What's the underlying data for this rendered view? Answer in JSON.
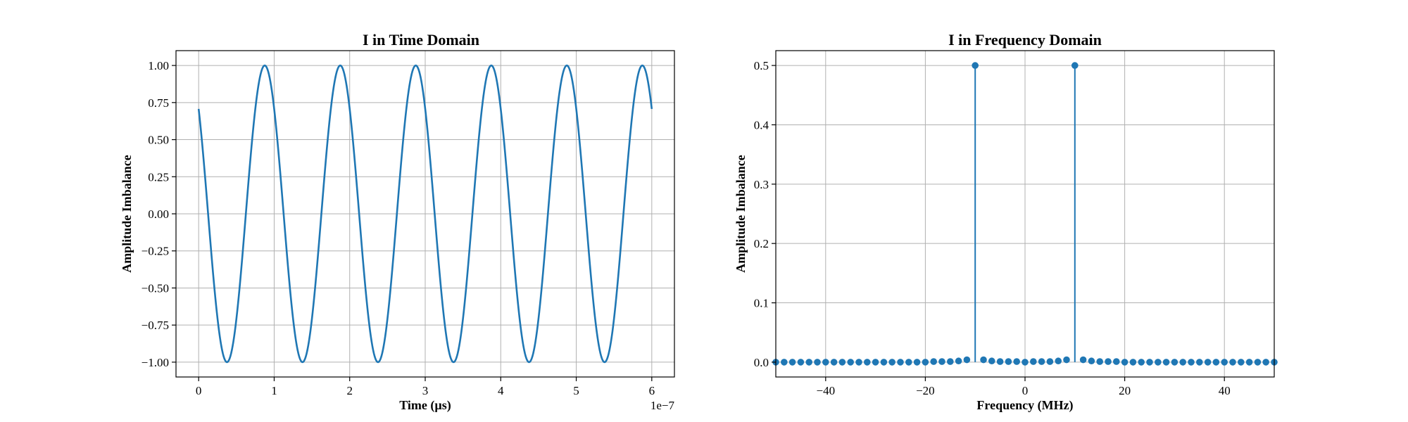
{
  "chart_data": [
    {
      "type": "line",
      "title": "I in Time Domain",
      "xlabel": "Time (µs)",
      "ylabel": "Amplitude Imbalance",
      "x_offset_label": "1e−7",
      "xlim": [
        -0.3,
        6.3
      ],
      "ylim": [
        -1.1,
        1.1
      ],
      "xticks": [
        0,
        1,
        2,
        3,
        4,
        5,
        6
      ],
      "xtick_labels": [
        "0",
        "1",
        "2",
        "3",
        "4",
        "5",
        "6"
      ],
      "yticks": [
        -1.0,
        -0.75,
        -0.5,
        -0.25,
        0.0,
        0.25,
        0.5,
        0.75,
        1.0
      ],
      "ytick_labels": [
        "−1.00",
        "−0.75",
        "−0.50",
        "−0.25",
        "0.00",
        "0.25",
        "0.50",
        "0.75",
        "1.00"
      ],
      "grid": true,
      "series": [
        {
          "color": "#1f77b4",
          "x_range": [
            0,
            6
          ],
          "function": "cos",
          "amplitude": 1.0,
          "frequency_per_unit": 1.0,
          "phase_rad": 0.7854
        }
      ]
    },
    {
      "type": "stem",
      "title": "I in Frequency Domain",
      "xlabel": "Frequency (MHz)",
      "ylabel": "Amplitude Imbalance",
      "xlim": [
        -50,
        50
      ],
      "ylim": [
        -0.025,
        0.525
      ],
      "xticks": [
        -40,
        -20,
        0,
        20,
        40
      ],
      "xtick_labels": [
        "−40",
        "−20",
        "0",
        "20",
        "40"
      ],
      "yticks": [
        0.0,
        0.1,
        0.2,
        0.3,
        0.4,
        0.5
      ],
      "ytick_labels": [
        "0.0",
        "0.1",
        "0.2",
        "0.3",
        "0.4",
        "0.5"
      ],
      "grid": true,
      "series": [
        {
          "color": "#1f77b4",
          "x": [
            -50,
            -48.33,
            -46.67,
            -45,
            -43.33,
            -41.67,
            -40,
            -38.33,
            -36.67,
            -35,
            -33.33,
            -31.67,
            -30,
            -28.33,
            -26.67,
            -25,
            -23.33,
            -21.67,
            -20,
            -18.33,
            -16.67,
            -15,
            -13.33,
            -11.67,
            -10,
            -8.33,
            -6.67,
            -5,
            -3.33,
            -1.67,
            0,
            1.67,
            3.33,
            5,
            6.67,
            8.33,
            10,
            11.67,
            13.33,
            15,
            16.67,
            18.33,
            20,
            21.67,
            23.33,
            25,
            26.67,
            28.33,
            30,
            31.67,
            33.33,
            35,
            36.67,
            38.33,
            40,
            41.67,
            43.33,
            45,
            46.67,
            48.33,
            50
          ],
          "values": [
            0.0,
            0.0,
            0.0,
            0.0,
            0.0,
            0.0,
            0.0,
            0.0,
            0.0,
            0.0,
            0.0,
            0.0,
            0.0,
            0.0,
            0.0,
            0.0,
            0.0,
            0.0,
            0.0,
            0.001,
            0.001,
            0.001,
            0.002,
            0.004,
            0.5,
            0.004,
            0.002,
            0.001,
            0.001,
            0.001,
            0.0,
            0.001,
            0.001,
            0.001,
            0.002,
            0.004,
            0.5,
            0.004,
            0.002,
            0.001,
            0.001,
            0.001,
            0.0,
            0.0,
            0.0,
            0.0,
            0.0,
            0.0,
            0.0,
            0.0,
            0.0,
            0.0,
            0.0,
            0.0,
            0.0,
            0.0,
            0.0,
            0.0,
            0.0,
            0.0,
            0.0
          ]
        }
      ]
    }
  ]
}
